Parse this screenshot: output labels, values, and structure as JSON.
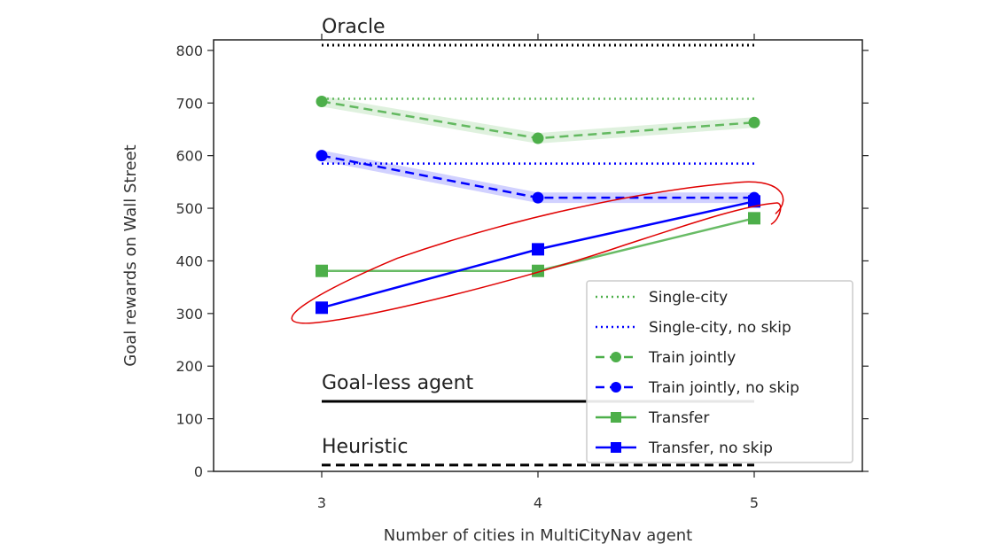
{
  "chart_data": {
    "type": "line",
    "title": "",
    "xlabel": "Number of cities in MultiCityNav agent",
    "ylabel": "Goal rewards on Wall Street",
    "x": [
      3,
      4,
      5
    ],
    "xticks": [
      "3",
      "4",
      "5"
    ],
    "xlim": [
      2.5,
      5.5
    ],
    "ylim": [
      0,
      820
    ],
    "yticks": [
      "0",
      "100",
      "200",
      "300",
      "400",
      "500",
      "600",
      "700",
      "800"
    ],
    "grid": false,
    "legend_position": "bottom-right",
    "reference_lines": [
      {
        "label": "Oracle",
        "value": 810,
        "style": "dotted",
        "color": "#000000"
      },
      {
        "label": "Goal-less agent",
        "value": 133,
        "style": "solid",
        "color": "#000000"
      },
      {
        "label": "Heuristic",
        "value": 12,
        "style": "dashed",
        "color": "#000000"
      }
    ],
    "series": [
      {
        "name": "Single-city",
        "values": [
          708,
          708,
          708
        ],
        "style": "dotted",
        "marker": "none",
        "color": "#4daf4a"
      },
      {
        "name": "Single-city, no skip",
        "values": [
          585,
          585,
          585
        ],
        "style": "dotted",
        "marker": "none",
        "color": "#0000ff"
      },
      {
        "name": "Train jointly",
        "values": [
          703,
          633,
          663
        ],
        "band": [
          [
            693,
            713
          ],
          [
            623,
            643
          ],
          [
            653,
            673
          ]
        ],
        "style": "dashed",
        "marker": "circle",
        "color": "#4daf4a"
      },
      {
        "name": "Train jointly, no skip",
        "values": [
          600,
          520,
          520
        ],
        "band": [
          [
            590,
            610
          ],
          [
            510,
            530
          ],
          [
            510,
            530
          ]
        ],
        "style": "dashed",
        "marker": "circle",
        "color": "#0000ff"
      },
      {
        "name": "Transfer",
        "values": [
          381,
          381,
          481
        ],
        "style": "solid",
        "marker": "square",
        "color": "#4daf4a"
      },
      {
        "name": "Transfer, no skip",
        "values": [
          311,
          422,
          513
        ],
        "style": "solid",
        "marker": "square",
        "color": "#0000ff"
      }
    ],
    "hand_drawn_highlight": {
      "color": "#e00000",
      "encircles": [
        "Transfer",
        "Transfer, no skip"
      ]
    }
  }
}
